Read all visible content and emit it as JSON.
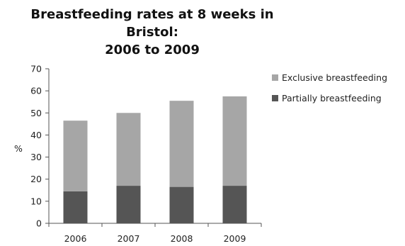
{
  "chart_data": {
    "type": "bar",
    "stacked": true,
    "title_lines": [
      "Breastfeeding rates at 8 weeks in",
      "Bristol:",
      "2006 to 2009"
    ],
    "ylabel": "%",
    "xlabel": "",
    "categories": [
      "2006",
      "2007",
      "2008",
      "2009"
    ],
    "series": [
      {
        "name": "Partially breastfeeding",
        "values": [
          14.5,
          17,
          16.5,
          17
        ],
        "color": "#555555"
      },
      {
        "name": "Exclusive breastfeeding",
        "values": [
          32,
          33,
          39,
          40.5
        ],
        "color": "#a6a6a6"
      }
    ],
    "legend_order": [
      1,
      0
    ],
    "legend_position": "right",
    "ylim": [
      0,
      70
    ],
    "yticks": [
      0,
      10,
      20,
      30,
      40,
      50,
      60,
      70
    ],
    "grid": false
  }
}
